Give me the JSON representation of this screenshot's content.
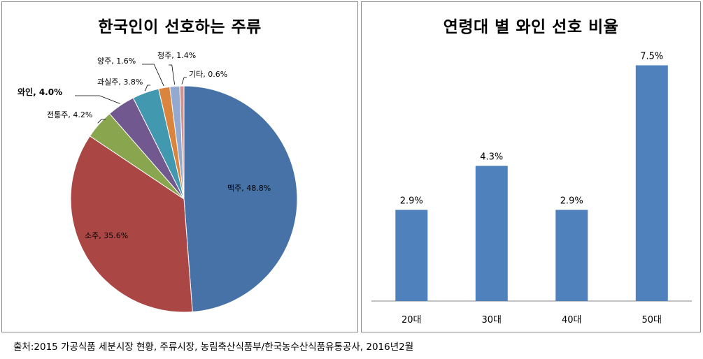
{
  "chart_data": [
    {
      "type": "pie",
      "title": "한국인이 선호하는 주류",
      "categories": [
        "맥주",
        "소주",
        "전통주",
        "와인",
        "과실주",
        "양주",
        "청주",
        "기타"
      ],
      "values": [
        48.8,
        35.6,
        4.2,
        4.0,
        3.8,
        1.6,
        1.4,
        0.6
      ],
      "unit": "%",
      "data_labels": [
        "맥주, 48.8%",
        "소주, 35.6%",
        "전통주, 4.2%",
        "와인, 4.0%",
        "과실주, 3.8%",
        "양주, 1.6%",
        "청주, 1.4%",
        "기타, 0.6%"
      ],
      "highlight": "와인",
      "colors": [
        "#4672a8",
        "#aa4744",
        "#89a54e",
        "#71588f",
        "#4298af",
        "#db843d",
        "#93a9cf",
        "#d19392"
      ]
    },
    {
      "type": "bar",
      "title": "연령대 별 와인 선호 비율",
      "categories": [
        "20대",
        "30대",
        "40대",
        "50대"
      ],
      "values": [
        2.9,
        4.3,
        2.9,
        7.5
      ],
      "data_labels": [
        "2.9%",
        "4.3%",
        "2.9%",
        "7.5%"
      ],
      "unit": "%",
      "ylim": [
        0,
        8
      ],
      "grid": false,
      "color": "#4f81bd"
    }
  ],
  "source": "출처:2015 가공식품 세분시장 현황, 주류시장, 농림축산식품부/한국농수산식품유통공사, 2016년2월"
}
